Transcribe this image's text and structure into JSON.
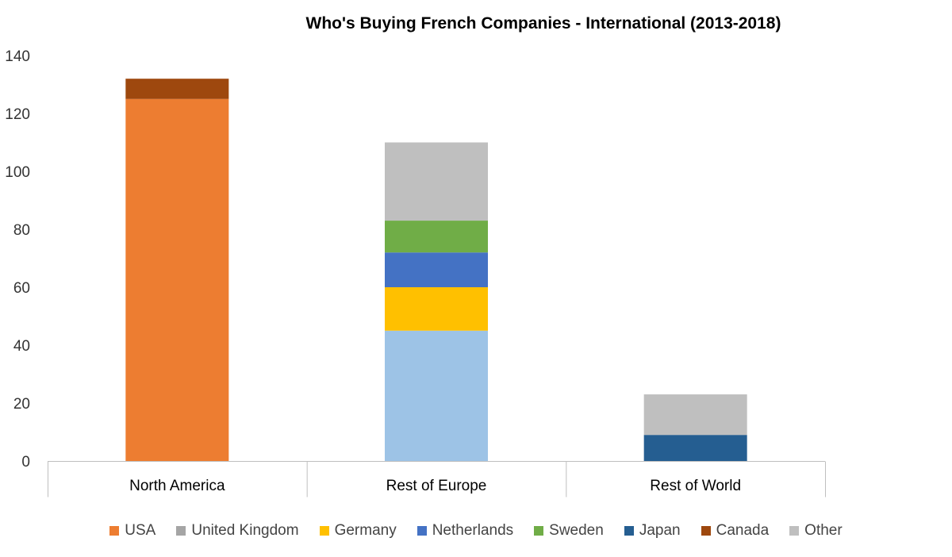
{
  "chart_data": {
    "type": "bar",
    "stacked": true,
    "title": "Who's Buying French Companies - International (2013-2018)",
    "xlabel": "",
    "ylabel": "",
    "ylim": [
      0,
      140
    ],
    "yticks": [
      0,
      20,
      40,
      60,
      80,
      100,
      120,
      140
    ],
    "categories": [
      "North America",
      "Rest of Europe",
      "Rest of World"
    ],
    "grid": false,
    "legend_position": "bottom",
    "legend": [
      {
        "name": "USA",
        "color": "#ED7D31"
      },
      {
        "name": "United Kingdom",
        "color": "#A5A5A5"
      },
      {
        "name": "Germany",
        "color": "#FFC000"
      },
      {
        "name": "Netherlands",
        "color": "#4472C4"
      },
      {
        "name": "Sweden",
        "color": "#70AD47"
      },
      {
        "name": "Japan",
        "color": "#255E91"
      },
      {
        "name": "Canada",
        "color": "#9E480E"
      },
      {
        "name": "Other",
        "color": "#BFBFBF"
      }
    ],
    "stacks": [
      {
        "category": "North America",
        "segments": [
          {
            "value": 125,
            "color": "#ED7D31"
          },
          {
            "value": 7,
            "color": "#9E480E"
          }
        ]
      },
      {
        "category": "Rest of Europe",
        "segments": [
          {
            "value": 45,
            "color": "#9DC3E6"
          },
          {
            "value": 15,
            "color": "#FFC000"
          },
          {
            "value": 12,
            "color": "#4472C4"
          },
          {
            "value": 11,
            "color": "#70AD47"
          },
          {
            "value": 27,
            "color": "#BFBFBF"
          }
        ]
      },
      {
        "category": "Rest of World",
        "segments": [
          {
            "value": 9,
            "color": "#255E91"
          },
          {
            "value": 14,
            "color": "#BFBFBF"
          }
        ]
      }
    ]
  }
}
